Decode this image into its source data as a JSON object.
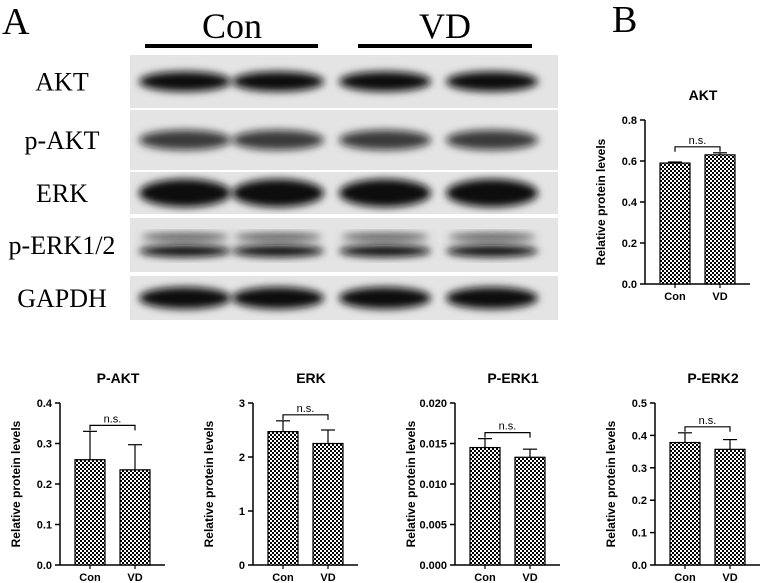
{
  "figure": {
    "panels": [
      "A",
      "B"
    ],
    "groups": [
      "Con",
      "VD"
    ],
    "bands": [
      "AKT",
      "p-AKT",
      "ERK",
      "p-ERK1/2",
      "GAPDH"
    ]
  },
  "chart_data": [
    {
      "type": "bar",
      "title": "AKT",
      "ylabel": "Relative protein levels",
      "categories": [
        "Con",
        "VD"
      ],
      "values": [
        0.59,
        0.63
      ],
      "errors": [
        0.005,
        0.01
      ],
      "color": "#000000",
      "annotation": "n.s.",
      "ylim": [
        0,
        0.8
      ],
      "yticks": [
        {
          "value": 0,
          "label": "0.0"
        },
        0.2,
        0.4,
        0.6,
        0.8
      ]
    },
    {
      "type": "bar",
      "title": "P-AKT",
      "ylabel": "Relative protein levels",
      "categories": [
        "Con",
        "VD"
      ],
      "values": [
        0.26,
        0.235
      ],
      "errors": [
        0.07,
        0.062
      ],
      "color": "#000000",
      "annotation": "n.s.",
      "ylim": [
        0,
        0.4
      ],
      "yticks": [
        {
          "value": 0,
          "label": "0.0"
        },
        0.1,
        0.2,
        0.3,
        0.4
      ]
    },
    {
      "type": "bar",
      "title": "ERK",
      "ylabel": "Relative protein levels",
      "categories": [
        "Con",
        "VD"
      ],
      "values": [
        2.47,
        2.25
      ],
      "errors": [
        0.2,
        0.25
      ],
      "color": "#000000",
      "annotation": "n.s.",
      "ylim": [
        0,
        3
      ],
      "yticks": [
        0,
        1,
        2,
        3
      ]
    },
    {
      "type": "bar",
      "title": "P-ERK1",
      "ylabel": "Relative protein levels",
      "categories": [
        "Con",
        "VD"
      ],
      "values": [
        0.0145,
        0.0133
      ],
      "errors": [
        0.0011,
        0.001
      ],
      "color": "#000000",
      "annotation": "n.s.",
      "ylim": [
        0,
        0.02
      ],
      "yticks": [
        {
          "value": 0,
          "label": "0.000"
        },
        0.005,
        {
          "value": 0.01,
          "label": "0.010"
        },
        0.015,
        {
          "value": 0.02,
          "label": "0.020"
        }
      ]
    },
    {
      "type": "bar",
      "title": "P-ERK2",
      "ylabel": "Relative protein levels",
      "categories": [
        "Con",
        "VD"
      ],
      "values": [
        0.378,
        0.357
      ],
      "errors": [
        0.03,
        0.03
      ],
      "color": "#000000",
      "annotation": "n.s.",
      "ylim": [
        0,
        0.5
      ],
      "yticks": [
        {
          "value": 0,
          "label": "0.0"
        },
        0.1,
        0.2,
        0.3,
        0.4,
        0.5
      ]
    }
  ]
}
